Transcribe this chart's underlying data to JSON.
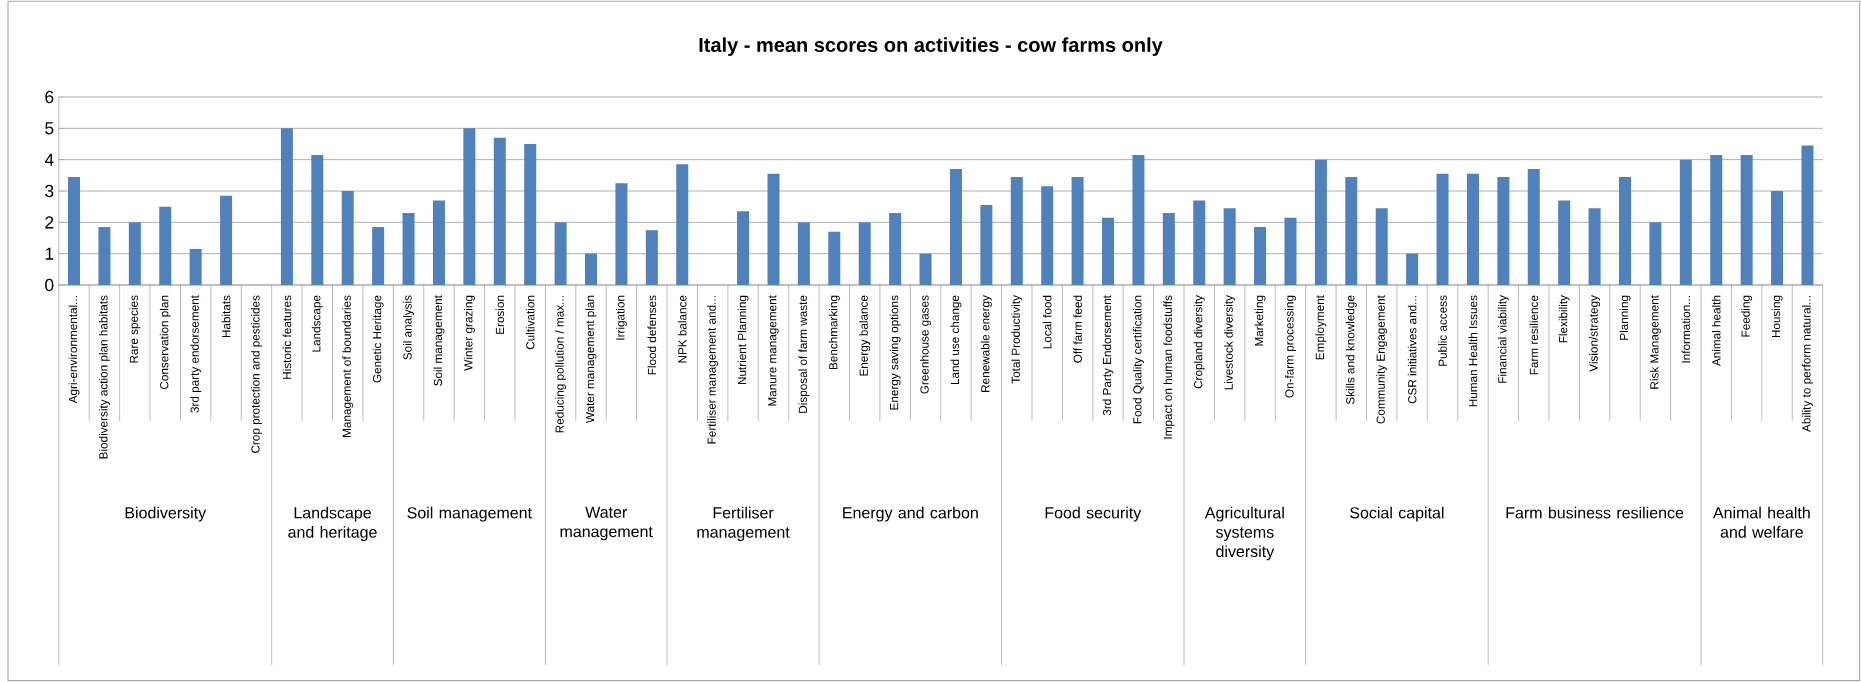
{
  "chart_data": {
    "type": "bar",
    "title": "Italy - mean scores on activities - cow farms only",
    "categories": [
      "Agri-environmental...",
      "Biodiversity action plan habitats",
      "Rare species",
      "Conservation plan",
      "3rd party endorsement",
      "Habitats",
      "Crop protection and pesticides",
      "Historic features",
      "Landscape",
      "Management of boundaries",
      "Genetic Heritage",
      "Soil analysis",
      "Soil management",
      "Winter grazing",
      "Erosion",
      "Cultivation",
      "Reducing pollution / max...",
      "Water management plan",
      "Irrigation",
      "Flood defenses",
      "NPK balance",
      "Fertiliser management and...",
      "Nutrient Planning",
      "Manure management",
      "Disposal of farm waste",
      "Benchmarking",
      "Energy balance",
      "Energy saving options",
      "Greenhouse gases",
      "Land use change",
      "Renewable energy",
      "Total Productivity",
      "Local food",
      "Off farm feed",
      "3rd Party Endorsement",
      "Food Quality certification",
      "Impact on human foodstuffs",
      "Cropland diversity",
      "Livestock diversity",
      "Marketing",
      "On-farm processing",
      "Employment",
      "Skills and knowledge",
      "Community Engagement",
      "CSR initiatives and...",
      "Public access",
      "Human Health Issues",
      "Financial viability",
      "Farm resilience",
      "Flexibility",
      "Vision/strategy",
      "Planning",
      "Risk Management",
      "Information...",
      "Animal health",
      "Feeding",
      "Housing",
      "Ability to perform natural..."
    ],
    "values": [
      3.45,
      1.85,
      2.0,
      2.5,
      1.15,
      2.85,
      0,
      5.0,
      4.15,
      3.0,
      1.85,
      2.3,
      2.7,
      5.0,
      4.7,
      4.5,
      2.0,
      1.0,
      3.25,
      1.75,
      3.85,
      0,
      2.35,
      3.55,
      2.0,
      1.7,
      2.0,
      2.3,
      1.0,
      3.7,
      2.55,
      3.45,
      3.15,
      3.45,
      2.15,
      4.15,
      2.3,
      2.7,
      2.45,
      1.85,
      2.15,
      4.0,
      3.45,
      2.45,
      1.0,
      3.55,
      3.55,
      3.45,
      3.7,
      2.7,
      2.45,
      3.45,
      2.0,
      4.0,
      4.15,
      4.15,
      3.0,
      4.45
    ],
    "color": "#4f81bd",
    "ylim": [
      0,
      6
    ],
    "yticks": [
      0,
      1,
      2,
      3,
      4,
      5,
      6
    ],
    "grid": "y",
    "annotations": [
      "Biodiversity",
      "Landscape and heritage",
      "Soil management",
      "Water management",
      "Fertiliser management",
      "Energy and carbon",
      "Food security",
      "Agricultural systems diversity",
      "Social capital",
      "Farm business resilience",
      "Animal health and welfare"
    ]
  }
}
